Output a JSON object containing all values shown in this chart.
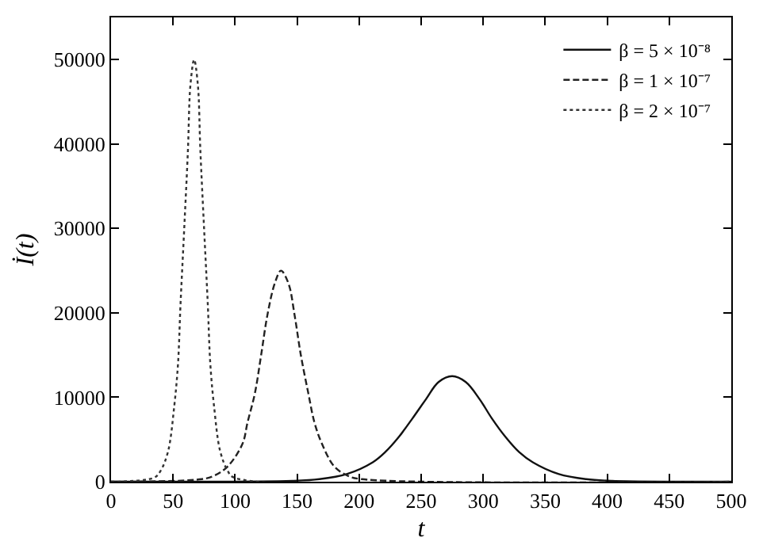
{
  "chart_data": {
    "type": "line",
    "xlabel": "t",
    "ylabel": "İ(t)",
    "xlim": [
      0,
      500
    ],
    "xticks": [
      0,
      50,
      100,
      150,
      200,
      250,
      300,
      350,
      400,
      450,
      500
    ],
    "ylim": [
      0,
      55000
    ],
    "yticks": [
      0,
      10000,
      20000,
      30000,
      40000,
      50000
    ],
    "legend": "top right",
    "marker": "none",
    "series": [
      {
        "name": "β = 5 × 10⁻⁸",
        "color": "#111111",
        "line_style": "solid",
        "x": [
          0,
          146,
          168,
          190,
          211,
          221,
          232,
          243,
          254,
          264,
          275,
          286,
          297,
          307,
          318,
          329,
          340,
          361,
          383,
          404,
          500
        ],
        "values": [
          0,
          100,
          300,
          900,
          2300,
          3500,
          5300,
          7500,
          9800,
          11800,
          12500,
          11800,
          9800,
          7500,
          5300,
          3500,
          2300,
          900,
          300,
          100,
          0
        ]
      },
      {
        "name": "β = 1 × 10⁻⁷",
        "color": "#222222",
        "line_style": "dashed",
        "x": [
          0,
          73,
          83,
          94,
          106,
          110,
          116,
          121,
          126,
          132,
          137,
          143,
          148,
          153,
          159,
          164,
          170,
          180,
          191,
          202,
          500
        ],
        "values": [
          0,
          300,
          700,
          1800,
          4500,
          7000,
          10500,
          15000,
          19700,
          23500,
          25000,
          23500,
          19700,
          15000,
          10500,
          7000,
          4500,
          1800,
          700,
          300,
          0
        ]
      },
      {
        "name": "β = 2 × 10⁻⁷",
        "color": "#333333",
        "line_style": "dotted",
        "x": [
          0,
          35,
          40,
          46,
          51,
          54,
          56,
          59,
          62,
          64,
          67,
          70,
          72,
          75,
          78,
          80,
          83,
          88,
          94,
          99,
          500
        ],
        "values": [
          0,
          500,
          1300,
          3600,
          9000,
          14000,
          21000,
          30000,
          39300,
          47000,
          50000,
          47000,
          39300,
          30000,
          21000,
          14000,
          9000,
          3600,
          1300,
          500,
          0
        ]
      }
    ]
  }
}
